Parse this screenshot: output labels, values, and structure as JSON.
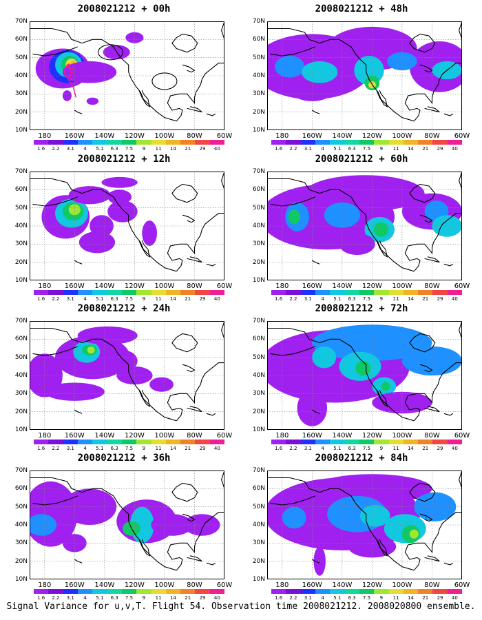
{
  "footer": "Signal Variance for u,v,T. Flight 54. Observation time 2008021212. 2008020800 ensemble.",
  "lat_labels": [
    "70N",
    "60N",
    "50N",
    "40N",
    "30N",
    "20N",
    "10N"
  ],
  "lon_labels": [
    "180",
    "160W",
    "140W",
    "120W",
    "100W",
    "80W",
    "60W"
  ],
  "colorbar": {
    "labels": [
      "1.6",
      "2.2",
      "3.1",
      "4",
      "5.1",
      "6.3",
      "7.5",
      "9",
      "11",
      "14",
      "21",
      "29",
      "40"
    ],
    "colors": [
      "#a020f0",
      "#7a10d8",
      "#2030ff",
      "#1e90ff",
      "#12c8e0",
      "#10d8a0",
      "#10c864",
      "#a0e632",
      "#e6dc32",
      "#f0b428",
      "#f08228",
      "#f04646",
      "#f01e96"
    ]
  },
  "panels": [
    {
      "title": "2008021212 + 00h",
      "lead": "00h"
    },
    {
      "title": "2008021212 + 48h",
      "lead": "48h"
    },
    {
      "title": "2008021212 + 12h",
      "lead": "12h"
    },
    {
      "title": "2008021212 + 60h",
      "lead": "60h"
    },
    {
      "title": "2008021212 + 24h",
      "lead": "24h"
    },
    {
      "title": "2008021212 + 72h",
      "lead": "72h"
    },
    {
      "title": "2008021212 + 36h",
      "lead": "36h"
    },
    {
      "title": "2008021212 + 84h",
      "lead": "84h"
    }
  ]
}
